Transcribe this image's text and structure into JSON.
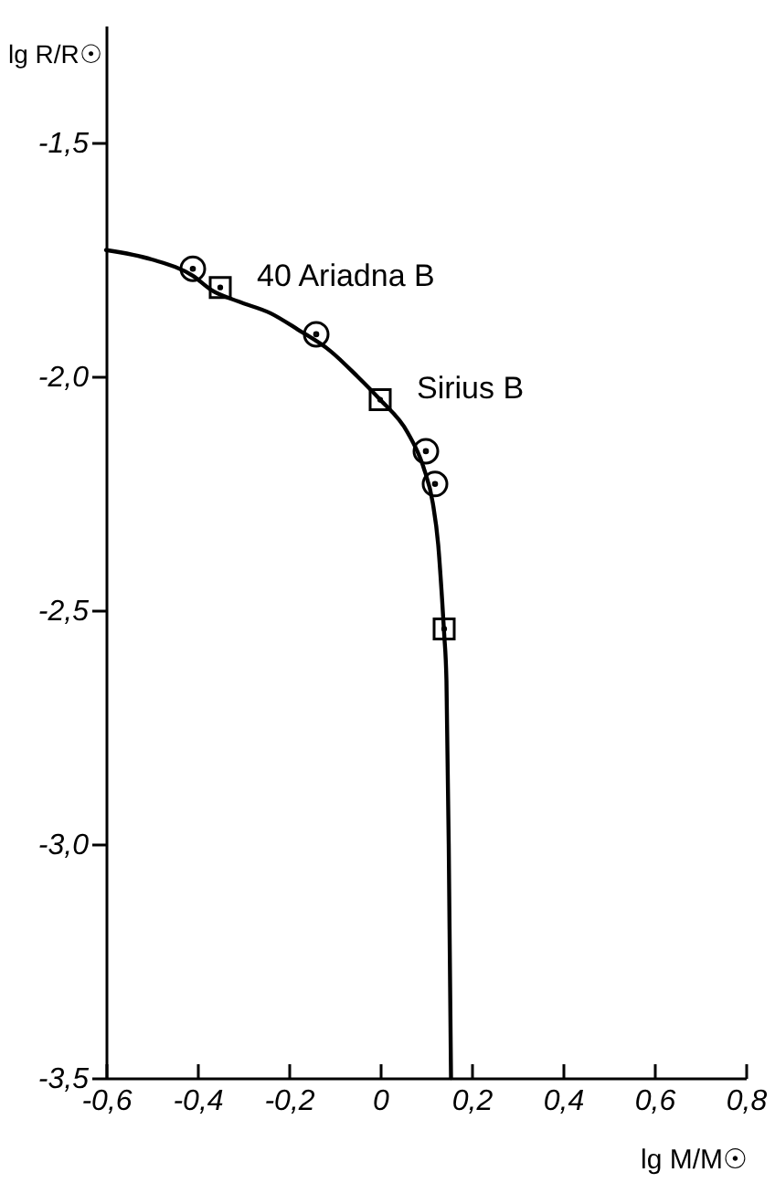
{
  "chart_data": {
    "type": "scatter",
    "xlabel": "lg M/M☉",
    "ylabel": "lg R/R☉",
    "xlim": [
      -0.6,
      0.8
    ],
    "xticks": [
      {
        "value": -0.6,
        "label": "-0,6"
      },
      {
        "value": -0.4,
        "label": "-0,4"
      },
      {
        "value": -0.2,
        "label": "-0,2"
      },
      0,
      {
        "value": 0.2,
        "label": "0,2"
      },
      {
        "value": 0.4,
        "label": "0,4"
      },
      {
        "value": 0.6,
        "label": "0,6"
      },
      {
        "value": 0.8,
        "label": "0,8"
      }
    ],
    "ylim": [
      -3.5,
      -1.25
    ],
    "yticks": [
      {
        "value": -1.5,
        "label": "-1,5"
      },
      {
        "value": -2.0,
        "label": "-2,0"
      },
      {
        "value": -2.5,
        "label": "-2,5"
      },
      {
        "value": -3.0,
        "label": "-3,0"
      },
      {
        "value": -3.5,
        "label": "-3,5"
      }
    ],
    "series": [
      {
        "type": "line",
        "marker": "none",
        "color": "#000000",
        "x": [
          -0.6,
          -0.5,
          -0.41,
          -0.37,
          -0.31,
          -0.24,
          -0.18,
          -0.11,
          -0.05,
          0,
          0.06,
          0.095,
          0.115,
          0.127,
          0.135,
          0.14,
          0.145,
          0.15,
          0.155
        ],
        "values": [
          -1.73,
          -1.75,
          -1.785,
          -1.815,
          -1.84,
          -1.865,
          -1.9,
          -1.945,
          -2.0,
          -2.05,
          -2.12,
          -2.195,
          -2.27,
          -2.36,
          -2.47,
          -2.55,
          -2.65,
          -3.0,
          -3.5
        ]
      },
      {
        "marker": "circle",
        "color": "#000000",
        "x": [
          -0.41,
          -0.14,
          0.1,
          0.12
        ],
        "values": [
          -1.77,
          -1.91,
          -2.16,
          -2.23
        ]
      },
      {
        "marker": "square",
        "color": "#000000",
        "x": [
          -0.35,
          0,
          0.14
        ],
        "values": [
          -1.81,
          -2.05,
          -2.54
        ]
      }
    ],
    "annotations": [
      {
        "text": "40 Ariadna B",
        "x": -0.35,
        "y": -1.81
      },
      {
        "text": "Sirius B",
        "x": 0,
        "y": -2.05
      }
    ]
  }
}
